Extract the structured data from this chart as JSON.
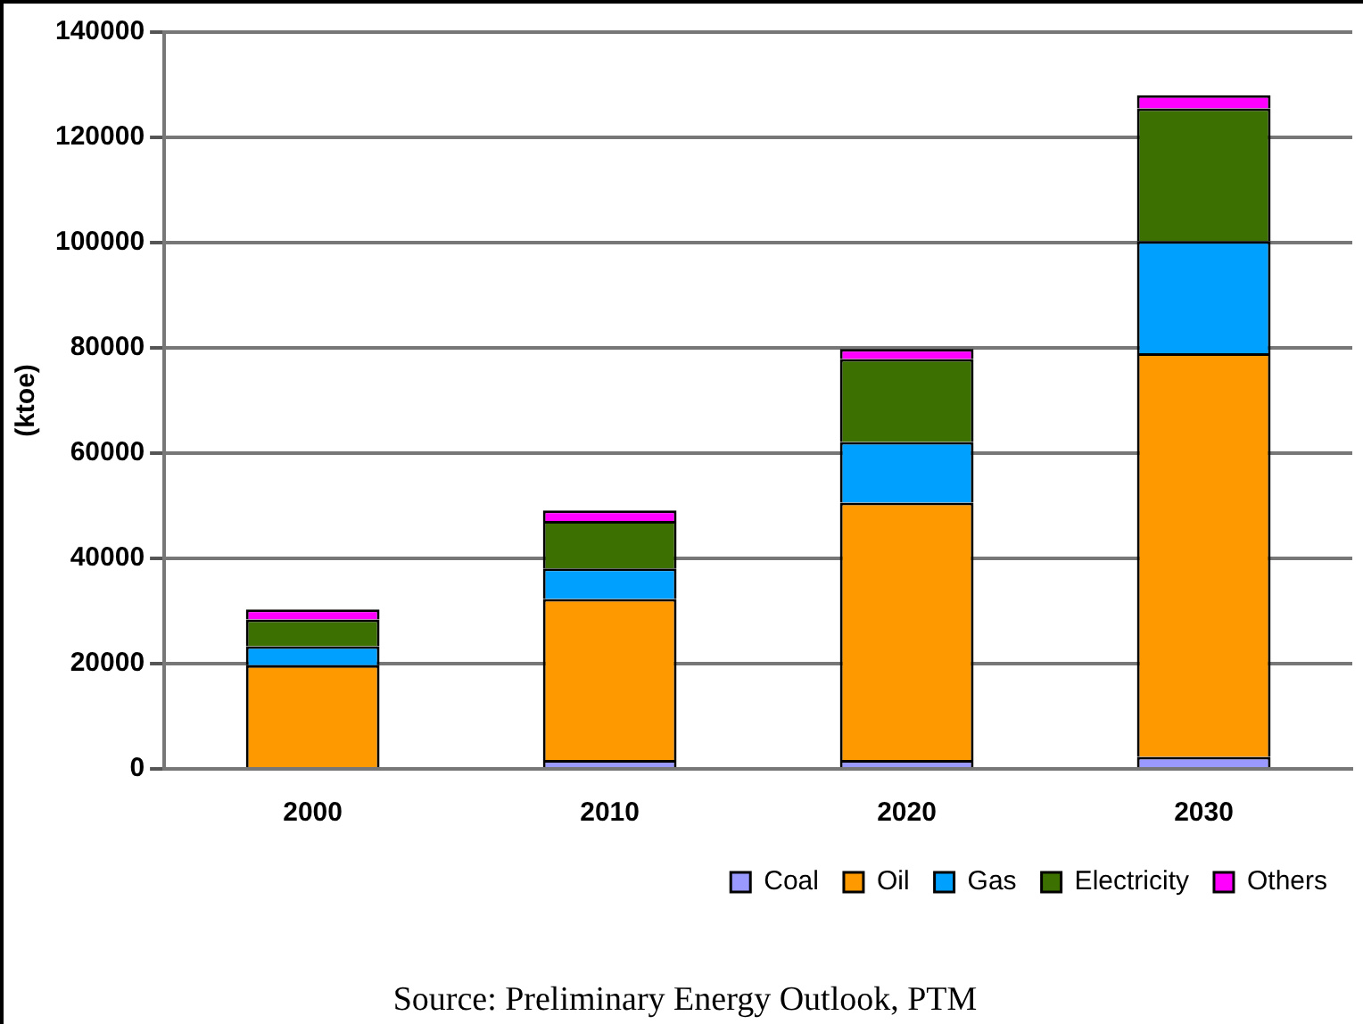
{
  "chart_data": {
    "type": "bar",
    "stacked": true,
    "ylabel": "(ktoe)",
    "categories": [
      "2000",
      "2010",
      "2020",
      "2030"
    ],
    "series": [
      {
        "name": "Coal",
        "color": "#9999ff",
        "values": [
          null,
          1700,
          1700,
          2300
        ]
      },
      {
        "name": "Oil",
        "color": "#ff9900",
        "values": [
          19700,
          30600,
          48900,
          76700
        ]
      },
      {
        "name": "Gas",
        "color": "#00a0ff",
        "values": [
          3600,
          5800,
          11500,
          21300
        ]
      },
      {
        "name": "Electricity",
        "color": "#3c7000",
        "values": [
          5100,
          9000,
          15800,
          25200
        ]
      },
      {
        "name": "Others",
        "color": "#ff00ff",
        "values": [
          1900,
          2000,
          1900,
          2500
        ]
      }
    ],
    "ylim": [
      0,
      140000
    ],
    "yticks": [
      0,
      20000,
      40000,
      60000,
      80000,
      100000,
      120000,
      140000
    ],
    "grid": "y",
    "legend": "bottom",
    "annotations": [
      "Source: Preliminary Energy Outlook, PTM"
    ]
  }
}
